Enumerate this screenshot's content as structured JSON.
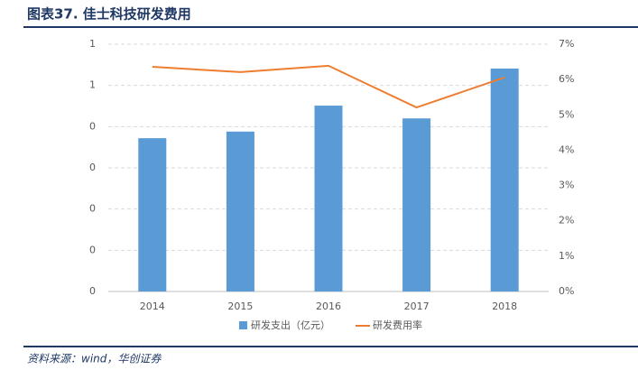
{
  "chart_data": {
    "type": "bar_line",
    "title": "图表37.  佳士科技研发费用",
    "source": "资料来源：wind，华创证券",
    "categories": [
      "2014",
      "2015",
      "2016",
      "2017",
      "2018"
    ],
    "series": [
      {
        "name": "研发支出（亿元）",
        "color": "#5b9bd5",
        "type": "bar",
        "values": [
          0.372,
          0.388,
          0.451,
          0.42,
          0.541
        ]
      },
      {
        "name": "研发费用率",
        "color": "#ed7d31",
        "type": "line",
        "axis": "y2",
        "values": [
          6.36,
          6.21,
          6.39,
          5.21,
          6.06
        ]
      }
    ],
    "ylim": [
      0,
      0.6
    ],
    "yticks": [
      0,
      {
        "value": 0.1,
        "label": "0"
      },
      {
        "value": 0.2,
        "label": "0"
      },
      {
        "value": 0.3,
        "label": "0"
      },
      {
        "value": 0.4,
        "label": "0"
      },
      {
        "value": 0.5,
        "label": "1"
      },
      {
        "value": 0.6,
        "label": "1"
      }
    ],
    "y2lim": [
      0,
      7
    ],
    "y2ticks": [
      {
        "value": 0,
        "label": "0%"
      },
      {
        "value": 1,
        "label": "1%"
      },
      {
        "value": 2,
        "label": "2%"
      },
      {
        "value": 3,
        "label": "3%"
      },
      {
        "value": 4,
        "label": "4%"
      },
      {
        "value": 5,
        "label": "5%"
      },
      {
        "value": 6,
        "label": "6%"
      },
      {
        "value": 7,
        "label": "7%"
      }
    ],
    "grid": true,
    "legend": "bottom"
  }
}
